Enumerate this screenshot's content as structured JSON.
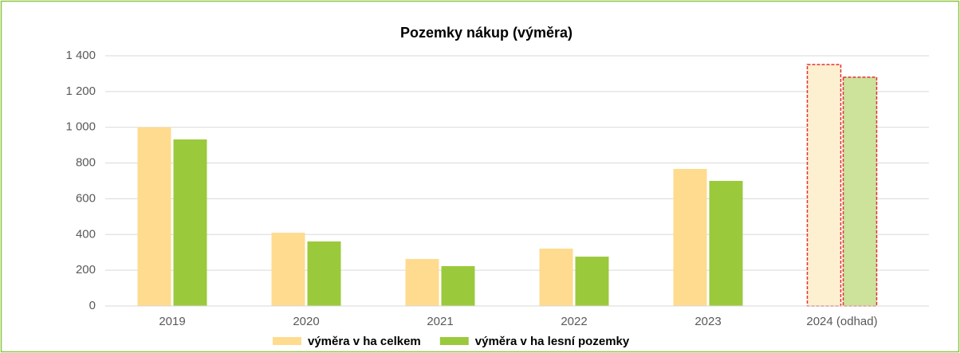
{
  "chart_data": {
    "type": "bar",
    "title": "Pozemky nákup (výměra)",
    "categories": [
      "2019",
      "2020",
      "2021",
      "2022",
      "2023",
      "2024 (odhad)"
    ],
    "series": [
      {
        "name": "výměra v ha celkem",
        "color": "#fedb8f",
        "values": [
          1000,
          410,
          263,
          321,
          767,
          1351
        ],
        "point_colors": [
          "#fedb8f",
          "#fedb8f",
          "#fedb8f",
          "#fedb8f",
          "#fedb8f",
          "#fdf0d0"
        ]
      },
      {
        "name": "výměra v ha lesní pozemky",
        "color": "#9bc93c",
        "values": [
          932,
          361,
          223,
          276,
          700,
          1280
        ],
        "point_colors": [
          "#9bc93c",
          "#9bc93c",
          "#9bc93c",
          "#9bc93c",
          "#9bc93c",
          "#cde29a"
        ]
      }
    ],
    "outline_color": "#e03030",
    "ylim": [
      0,
      1400
    ],
    "yticks": [
      0,
      200,
      400,
      600,
      800,
      {
        "value": 1000,
        "label": "1 000"
      },
      {
        "value": 1200,
        "label": "1 200"
      },
      {
        "value": 1400,
        "label": "1 400"
      }
    ],
    "grid": true,
    "legend": "bottom"
  }
}
